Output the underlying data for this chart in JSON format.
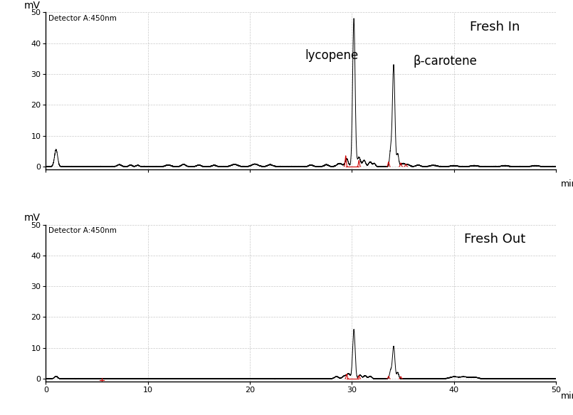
{
  "panel1_title": "Fresh In",
  "panel2_title": "Fresh Out",
  "detector_label": "Detector A:450nm",
  "ylabel": "mV",
  "xlabel": "min",
  "ylim": [
    -1,
    50
  ],
  "xlim": [
    0,
    50
  ],
  "yticks": [
    0,
    10,
    20,
    30,
    40,
    50
  ],
  "xticks": [
    0,
    10,
    20,
    30,
    40,
    50
  ],
  "lycopene_label": "lycopene",
  "beta_label": "β-carotene",
  "background_color": "#ffffff",
  "grid_color": "#bbbbbb",
  "line_color": "#000000",
  "red_color": "#cc0000",
  "title_fontsize": 13,
  "label_fontsize": 9,
  "tick_fontsize": 8,
  "annotation_fontsize": 12,
  "detector_fontsize": 7.5
}
